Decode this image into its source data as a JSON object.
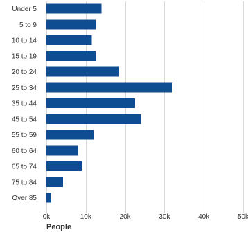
{
  "chart_data": {
    "type": "bar",
    "orientation": "horizontal",
    "title": "",
    "xlabel": "People",
    "ylabel": "",
    "categories": [
      "Under 5",
      "5 to 9",
      "10 to 14",
      "15 to 19",
      "20 to 24",
      "25 to 34",
      "35 to 44",
      "45 to 54",
      "55 to 59",
      "60 to 64",
      "65 to 74",
      "75 to 84",
      "Over 85"
    ],
    "series": [
      {
        "values": [
          14000,
          12500,
          11500,
          12500,
          18500,
          32000,
          22500,
          24000,
          12000,
          8000,
          9000,
          4200,
          1200
        ]
      }
    ],
    "xlim": [
      0,
      50000
    ],
    "xticks": [
      0,
      10000,
      20000,
      30000,
      40000,
      50000
    ],
    "xtick_labels": [
      "0k",
      "10k",
      "20k",
      "30k",
      "40k",
      "50k"
    ],
    "grid": "vertical",
    "legend": "none",
    "colors": {
      "bar": "#0f4d92",
      "grid": "#d9d9d9",
      "text": "#333333"
    }
  }
}
